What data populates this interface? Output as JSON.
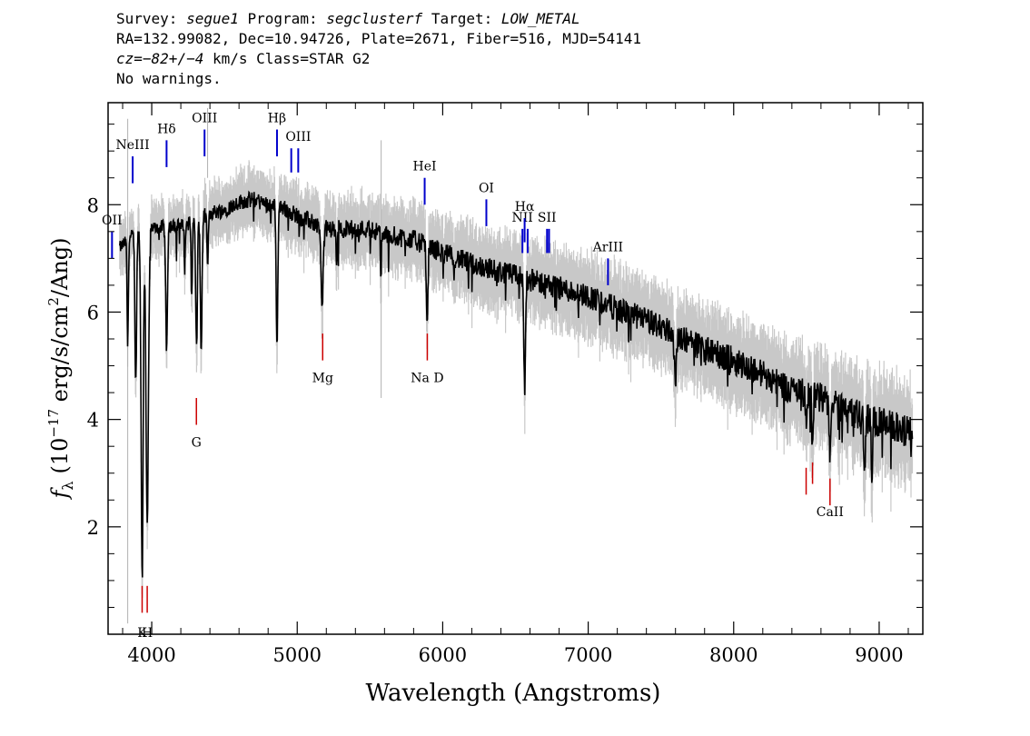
{
  "header": {
    "survey_label": "Survey:",
    "survey": "segue1",
    "program_label": "Program:",
    "program": "segclusterf",
    "target_label": "Target:",
    "target": "LOW_METAL",
    "coords": "RA=132.99082, Dec=10.94726, Plate=2671, Fiber=516, MJD=54141",
    "cz_label": "cz=",
    "cz_value": "−82+/−4",
    "cz_unit": "km/s",
    "class_text": "Class=STAR G2",
    "warnings": "No warnings."
  },
  "chart_data": {
    "type": "line",
    "xlabel": "Wavelength (Angstroms)",
    "ylabel_parts": {
      "symbol": "f",
      "subscript": "λ",
      "pre": "(10",
      "exp": "−17",
      "mid": " erg/s/cm",
      "exp2": "2",
      "post": "/Ang)"
    },
    "xlim": [
      3700,
      9300
    ],
    "ylim": [
      0,
      9.9
    ],
    "xticks": [
      4000,
      5000,
      6000,
      7000,
      8000,
      9000
    ],
    "xtick_labels": [
      "4000",
      "5000",
      "6000",
      "7000",
      "8000",
      "9000"
    ],
    "yticks": [
      2,
      4,
      6,
      8
    ],
    "ytick_labels": [
      "2",
      "4",
      "6",
      "8"
    ],
    "continuum": [
      [
        3780,
        7.2
      ],
      [
        3900,
        7.5
      ],
      [
        4000,
        7.55
      ],
      [
        4100,
        7.6
      ],
      [
        4200,
        7.6
      ],
      [
        4300,
        7.7
      ],
      [
        4400,
        7.85
      ],
      [
        4500,
        7.9
      ],
      [
        4600,
        8.05
      ],
      [
        4700,
        8.1
      ],
      [
        4800,
        8.0
      ],
      [
        4900,
        7.95
      ],
      [
        5000,
        7.8
      ],
      [
        5200,
        7.55
      ],
      [
        5400,
        7.55
      ],
      [
        5500,
        7.55
      ],
      [
        5600,
        7.45
      ],
      [
        5800,
        7.35
      ],
      [
        6000,
        7.1
      ],
      [
        6200,
        6.9
      ],
      [
        6400,
        6.75
      ],
      [
        6600,
        6.6
      ],
      [
        6800,
        6.45
      ],
      [
        7000,
        6.3
      ],
      [
        7200,
        6.05
      ],
      [
        7400,
        5.85
      ],
      [
        7600,
        5.6
      ],
      [
        7800,
        5.3
      ],
      [
        8000,
        5.1
      ],
      [
        8200,
        4.85
      ],
      [
        8400,
        4.55
      ],
      [
        8600,
        4.4
      ],
      [
        8800,
        4.15
      ],
      [
        9000,
        3.95
      ],
      [
        9230,
        3.75
      ]
    ],
    "absorption": [
      {
        "x": 3835,
        "depth": 2.0,
        "w": 6
      },
      {
        "x": 3890,
        "depth": 2.8,
        "w": 8
      },
      {
        "x": 3934,
        "depth": 6.3,
        "w": 10
      },
      {
        "x": 3969,
        "depth": 5.4,
        "w": 12
      },
      {
        "x": 4102,
        "depth": 2.4,
        "w": 8
      },
      {
        "x": 4227,
        "depth": 0.8,
        "w": 5
      },
      {
        "x": 4275,
        "depth": 1.3,
        "w": 6
      },
      {
        "x": 4308,
        "depth": 2.4,
        "w": 8
      },
      {
        "x": 4340,
        "depth": 2.5,
        "w": 8
      },
      {
        "x": 4384,
        "depth": 1.0,
        "w": 6
      },
      {
        "x": 4861,
        "depth": 2.5,
        "w": 8
      },
      {
        "x": 5170,
        "depth": 1.4,
        "w": 10
      },
      {
        "x": 5270,
        "depth": 0.6,
        "w": 6
      },
      {
        "x": 5575,
        "depth": 1.0,
        "w": 4
      },
      {
        "x": 5893,
        "depth": 1.4,
        "w": 8
      },
      {
        "x": 6563,
        "depth": 2.0,
        "w": 8
      },
      {
        "x": 7600,
        "depth": 0.7,
        "w": 12
      },
      {
        "x": 8498,
        "depth": 0.6,
        "w": 6
      },
      {
        "x": 8542,
        "depth": 1.1,
        "w": 6
      },
      {
        "x": 8662,
        "depth": 1.0,
        "w": 6
      },
      {
        "x": 8900,
        "depth": 0.9,
        "w": 8
      },
      {
        "x": 8950,
        "depth": 1.3,
        "w": 6
      }
    ],
    "series": [
      {
        "name": "",
        "role": "flux",
        "color": "#000000"
      },
      {
        "name": "",
        "role": "error",
        "color": "#c8c8c8"
      }
    ],
    "emission_lines": [
      {
        "label": "OII",
        "x": 3727,
        "y_bottom": 7.0,
        "y_top": 7.5,
        "color": "#0000cc"
      },
      {
        "label": "NeIII",
        "x": 3869,
        "y_bottom": 8.4,
        "y_top": 8.9,
        "color": "#0000cc"
      },
      {
        "label": "Hδ",
        "x": 4102,
        "y_bottom": 8.7,
        "y_top": 9.2,
        "color": "#0000cc"
      },
      {
        "label": "OIII",
        "x": 4363,
        "y_bottom": 8.9,
        "y_top": 9.4,
        "color": "#0000cc"
      },
      {
        "label": "Hβ",
        "x": 4861,
        "y_bottom": 8.9,
        "y_top": 9.4,
        "color": "#0000cc"
      },
      {
        "label": "",
        "x": 4959,
        "y_bottom": 8.6,
        "y_top": 9.05,
        "color": "#0000cc"
      },
      {
        "label": "OIII",
        "x": 5007,
        "y_bottom": 8.6,
        "y_top": 9.05,
        "color": "#0000cc"
      },
      {
        "label": "HeI",
        "x": 5876,
        "y_bottom": 8.0,
        "y_top": 8.5,
        "color": "#0000cc"
      },
      {
        "label": "OI",
        "x": 6300,
        "y_bottom": 7.6,
        "y_top": 8.1,
        "color": "#0000cc"
      },
      {
        "label": "NII",
        "x": 6548,
        "y_bottom": 7.1,
        "y_top": 7.55,
        "color": "#0000cc"
      },
      {
        "label": "Hα",
        "x": 6563,
        "y_bottom": 7.3,
        "y_top": 7.75,
        "color": "#0000cc"
      },
      {
        "label": "",
        "x": 6584,
        "y_bottom": 7.1,
        "y_top": 7.55,
        "color": "#0000cc"
      },
      {
        "label": "SII",
        "x": 6717,
        "y_bottom": 7.1,
        "y_top": 7.55,
        "color": "#0000cc"
      },
      {
        "label": "",
        "x": 6731,
        "y_bottom": 7.1,
        "y_top": 7.55,
        "color": "#0000cc"
      },
      {
        "label": "ArIII",
        "x": 7136,
        "y_bottom": 6.5,
        "y_top": 7.0,
        "color": "#0000cc"
      }
    ],
    "absorption_markers": [
      {
        "label": "K",
        "x": 3934,
        "y_top": 0.9,
        "y_bottom": 0.4,
        "label_y": 0.15,
        "color": "#cc0000"
      },
      {
        "label": "H",
        "x": 3969,
        "y_top": 0.9,
        "y_bottom": 0.4,
        "label_y": 0.15,
        "color": "#cc0000"
      },
      {
        "label": "G",
        "x": 4307,
        "y_top": 4.4,
        "y_bottom": 3.9,
        "label_y": 3.7,
        "color": "#cc0000"
      },
      {
        "label": "Mg",
        "x": 5175,
        "y_top": 5.6,
        "y_bottom": 5.1,
        "label_y": 4.9,
        "color": "#cc0000"
      },
      {
        "label": "Na D",
        "x": 5894,
        "y_top": 5.6,
        "y_bottom": 5.1,
        "label_y": 4.9,
        "color": "#cc0000"
      },
      {
        "label": "",
        "x": 8498,
        "y_top": 3.1,
        "y_bottom": 2.6,
        "label_y": 2.4,
        "color": "#cc0000"
      },
      {
        "label": "",
        "x": 8542,
        "y_top": 3.2,
        "y_bottom": 2.8,
        "label_y": 2.4,
        "color": "#cc0000"
      },
      {
        "label": "CaII",
        "x": 8662,
        "y_top": 2.9,
        "y_bottom": 2.4,
        "label_y": 2.4,
        "color": "#cc0000"
      }
    ]
  }
}
